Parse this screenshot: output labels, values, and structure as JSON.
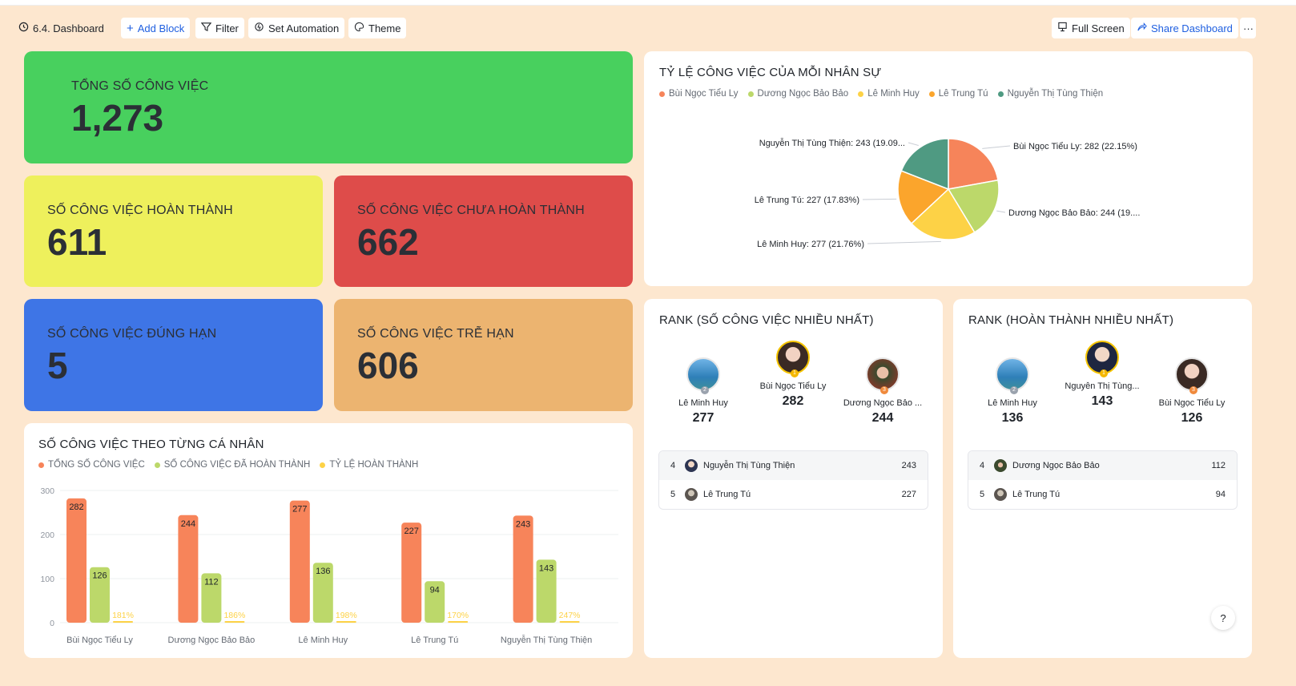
{
  "toolbar": {
    "title": "6.4. Dashboard",
    "add_block": "Add Block",
    "filter": "Filter",
    "set_automation": "Set Automation",
    "theme": "Theme",
    "full_screen": "Full Screen",
    "share_dashboard": "Share Dashboard",
    "more": "···"
  },
  "kpis": {
    "total": {
      "label": "TỔNG SỐ CÔNG VIỆC",
      "value": "1,273",
      "color": "#48d05e"
    },
    "done": {
      "label": "SỐ CÔNG VIỆC HOÀN THÀNH",
      "value": "611",
      "color": "#eef05c"
    },
    "not_done": {
      "label": "SỐ CÔNG VIỆC CHƯA HOÀN THÀNH",
      "value": "662",
      "color": "#de4c4a"
    },
    "on_time": {
      "label": "SỐ CÔNG VIỆC ĐÚNG HẠN",
      "value": "5",
      "color": "#3e75e6"
    },
    "late": {
      "label": "SỐ CÔNG VIỆC TRỄ HẠN",
      "value": "606",
      "color": "#ecb470"
    }
  },
  "pie_panel": {
    "title": "TỶ LỆ CÔNG VIỆC CỦA MỖI NHÂN SỰ",
    "slice_labels": [
      "Bùi Ngọc Tiểu Ly: 282 (22.15%)",
      "Dương Ngọc Bảo Bảo: 244 (19....",
      "Lê Minh Huy: 277 (21.76%)",
      "Lê Trung Tú: 227 (17.83%)",
      "Nguyễn Thị Tùng Thiện: 243 (19.09..."
    ]
  },
  "bar_panel": {
    "title": "SỐ CÔNG VIỆC THEO TỪNG CÁ NHÂN",
    "legend_total": "TỔNG SỐ CÔNG VIỆC",
    "legend_done": "SỐ CÔNG VIỆC ĐÃ HOÀN THÀNH",
    "legend_rate": "TỶ LỆ HOÀN THÀNH"
  },
  "chart_data": [
    {
      "type": "pie",
      "title": "TỶ LỆ CÔNG VIỆC CỦA MỖI NHÂN SỰ",
      "categories": [
        "Bùi Ngọc Tiểu Ly",
        "Dương Ngọc Bảo Bảo",
        "Lê Minh Huy",
        "Lê Trung Tú",
        "Nguyễn Thị Tùng Thiện"
      ],
      "values": [
        282,
        244,
        277,
        227,
        243
      ],
      "colors": [
        "#f6845a",
        "#bcd86a",
        "#fdd246",
        "#fba52c",
        "#4f9a82"
      ],
      "legend": "top-left"
    },
    {
      "type": "bar",
      "title": "SỐ CÔNG VIỆC THEO TỪNG CÁ NHÂN",
      "categories": [
        "Bùi Ngọc Tiểu Ly",
        "Dương Ngọc Bảo Bảo",
        "Lê Minh Huy",
        "Lê Trung Tú",
        "Nguyễn Thị Tùng Thiện"
      ],
      "series": [
        {
          "name": "TỔNG SỐ CÔNG VIỆC",
          "values": [
            282,
            244,
            277,
            227,
            243
          ],
          "color": "#f7845a"
        },
        {
          "name": "SỐ CÔNG VIỆC ĐÃ HOÀN THÀNH",
          "values": [
            126,
            112,
            136,
            94,
            143
          ],
          "color": "#bcd86a"
        },
        {
          "name": "TỶ LỆ HOÀN THÀNH",
          "values": [
            "181%",
            "186%",
            "198%",
            "170%",
            "247%"
          ],
          "color": "#fdd246"
        }
      ],
      "yticks": [
        "0",
        "100",
        "200",
        "300"
      ],
      "ylim": [
        0,
        300
      ],
      "grid": true,
      "legend": "top-left"
    }
  ],
  "rank_tasks": {
    "title": "RANK (SỐ CÔNG VIỆC NHIỀU NHẤT)",
    "podium": [
      {
        "rank": "2",
        "name": "Lê Minh Huy",
        "value": "277"
      },
      {
        "rank": "1",
        "name": "Bùi Ngọc Tiểu Ly",
        "value": "282"
      },
      {
        "rank": "3",
        "name": "Dương Ngọc Bảo ...",
        "value": "244"
      }
    ],
    "list": [
      {
        "rank": "4",
        "name": "Nguyễn Thị Tùng Thiện",
        "value": "243"
      },
      {
        "rank": "5",
        "name": "Lê Trung Tú",
        "value": "227"
      }
    ]
  },
  "rank_done": {
    "title": "RANK (HOÀN THÀNH NHIỀU NHẤT)",
    "podium": [
      {
        "rank": "2",
        "name": "Lê Minh Huy",
        "value": "136"
      },
      {
        "rank": "1",
        "name": "Nguyễn Thị Tùng...",
        "value": "143"
      },
      {
        "rank": "3",
        "name": "Bùi Ngọc Tiểu Ly",
        "value": "126"
      }
    ],
    "list": [
      {
        "rank": "4",
        "name": "Dương Ngọc Bảo Bảo",
        "value": "112"
      },
      {
        "rank": "5",
        "name": "Lê Trung Tú",
        "value": "94"
      }
    ]
  },
  "help": "?"
}
